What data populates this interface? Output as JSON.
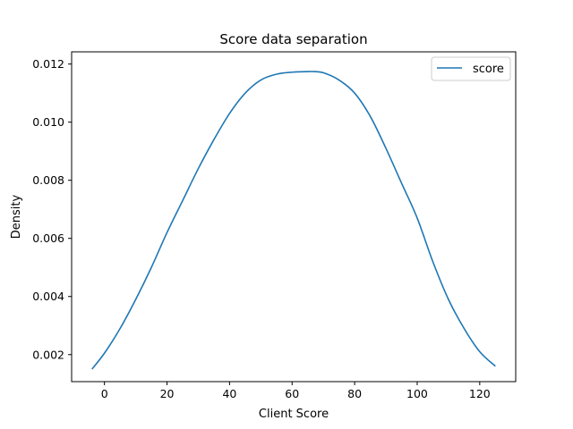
{
  "chart_data": {
    "type": "line",
    "title": "Score data separation",
    "xlabel": "Client Score",
    "ylabel": "Density",
    "xlim": [
      -10.5,
      131.5
    ],
    "ylim": [
      0.00107,
      0.01242
    ],
    "xticks": [
      0,
      20,
      40,
      60,
      80,
      100,
      120
    ],
    "yticks": [
      0.002,
      0.004,
      0.006,
      0.008,
      0.01,
      0.012
    ],
    "ytick_labels": [
      "0.002",
      "0.004",
      "0.006",
      "0.008",
      "0.010",
      "0.012"
    ],
    "grid": false,
    "legend_position": "upper right",
    "colors": {
      "line": "#1f77b4",
      "axes": "#000000",
      "legend_border": "#cccccc"
    },
    "series": [
      {
        "name": "score",
        "x": [
          -4,
          0,
          5,
          10,
          15,
          20,
          25,
          30,
          35,
          40,
          45,
          50,
          55,
          60,
          65,
          67,
          70,
          75,
          80,
          85,
          90,
          95,
          100,
          105,
          110,
          115,
          120,
          125
        ],
        "y": [
          0.0015,
          0.00205,
          0.0029,
          0.0039,
          0.005,
          0.0062,
          0.0073,
          0.0084,
          0.0094,
          0.0103,
          0.011,
          0.01145,
          0.01165,
          0.01172,
          0.01174,
          0.01174,
          0.0117,
          0.01145,
          0.011,
          0.0102,
          0.0091,
          0.0079,
          0.0067,
          0.0052,
          0.0039,
          0.0029,
          0.0021,
          0.0016
        ]
      }
    ]
  }
}
